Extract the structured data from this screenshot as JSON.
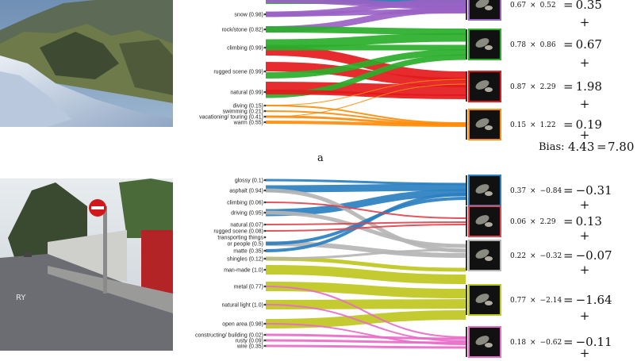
{
  "figure": {
    "panels": [
      {
        "caption": "a",
        "image_desc": "snowy rocky mountain stream",
        "colors": [
          "#2f7fc0",
          "#9a62c6",
          "#2aae2a",
          "#e41a1c",
          "#ff8c0a"
        ],
        "concepts": [
          {
            "label": "snow (0.98)",
            "group": 1
          },
          {
            "label": "rock/stone (0.82)",
            "group": 1
          },
          {
            "label": "climbing (0.99)",
            "group": 2
          },
          {
            "label": "rugged scene (0.99)",
            "group": 3
          },
          {
            "label": "natural (0.99)",
            "group": 3
          },
          {
            "label": "diving (0.15)",
            "group": 4
          },
          {
            "label": "swimming (0.21)",
            "group": 4
          },
          {
            "label": "vacationing/ touring (0.41)",
            "group": 4
          },
          {
            "label": "warm (0.55)",
            "group": 4
          }
        ],
        "prototypes": [
          {
            "weight": "0.67",
            "factor": "0.52",
            "contribution": "0.35",
            "color": "#9a62c6"
          },
          {
            "weight": "0.78",
            "factor": "0.86",
            "contribution": "0.67",
            "color": "#2aae2a"
          },
          {
            "weight": "0.87",
            "factor": "2.29",
            "contribution": "1.98",
            "color": "#e41a1c"
          },
          {
            "weight": "0.15",
            "factor": "1.22",
            "contribution": "0.19",
            "color": "#ff8c0a"
          }
        ],
        "bias_label": "Bias:",
        "bias_value": "4.43",
        "total": "7.80"
      },
      {
        "caption": "",
        "image_desc": "suburban street with red no-entry sign",
        "colors": [
          "#2a7fc0",
          "#e0464f",
          "#b5b5b5",
          "#bfc71e",
          "#e86bc8"
        ],
        "concepts": [
          {
            "label": "glossy (0.1)",
            "group": 0
          },
          {
            "label": "asphalt (0.94)",
            "group": 0
          },
          {
            "label": "climbing (0.06)",
            "group": 1
          },
          {
            "label": "driving (0.95)",
            "group": 0
          },
          {
            "label": "natural (0.07)",
            "group": 1
          },
          {
            "label": "rugged scene (0.08)",
            "group": 1
          },
          {
            "label": "transporting things",
            "group": 2
          },
          {
            "label": "or people (0.5)",
            "group": 2
          },
          {
            "label": "matte (0.35)",
            "group": 2
          },
          {
            "label": "shingles (0.12)",
            "group": 3
          },
          {
            "label": "man-made (1.0)",
            "group": 3
          },
          {
            "label": "metal (0.77)",
            "group": 3
          },
          {
            "label": "natural light (1.0)",
            "group": 3
          },
          {
            "label": "open area (0.98)",
            "group": 3
          },
          {
            "label": "constructing/ building (0.02)",
            "group": 4
          },
          {
            "label": "rusty (0.09)",
            "group": 4
          },
          {
            "label": "wire (0.35)",
            "group": 4
          }
        ],
        "prototypes": [
          {
            "weight": "0.37",
            "factor": "−0.84",
            "contribution": "−0.31",
            "color": "#2a7fc0"
          },
          {
            "weight": "0.06",
            "factor": "2.29",
            "contribution": "0.13",
            "color": "#e0464f"
          },
          {
            "weight": "0.22",
            "factor": "−0.32",
            "contribution": "−0.07",
            "color": "#b5b5b5"
          },
          {
            "weight": "0.77",
            "factor": "−2.14",
            "contribution": "−1.64",
            "color": "#bfc71e"
          },
          {
            "weight": "0.18",
            "factor": "−0.62",
            "contribution": "−0.11",
            "color": "#e86bc8"
          }
        ]
      }
    ],
    "times_symbol": "×",
    "equals_symbol": "=",
    "plus_symbol": "+"
  }
}
